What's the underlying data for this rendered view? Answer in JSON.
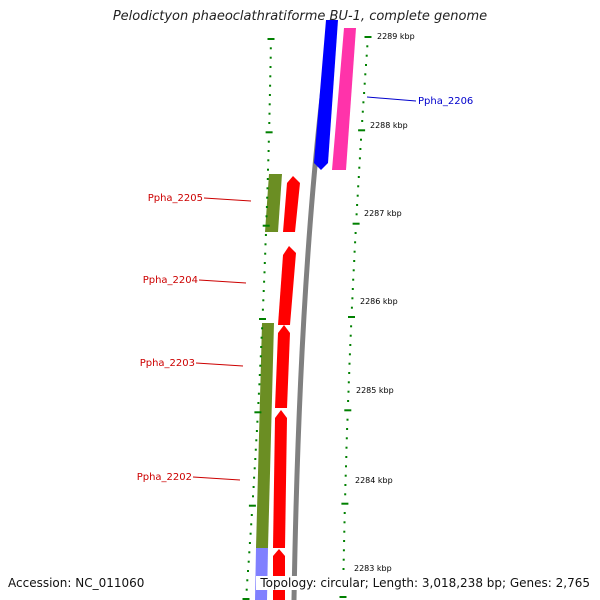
{
  "title": "Pelodictyon phaeoclathratiforme BU-1, complete genome",
  "accession": "Accession: NC_011060",
  "topology": "Topology: circular; Length: 3,018,238 bp; Genes: 2,765",
  "ticks": [
    "2289 kbp",
    "2288 kbp",
    "2287 kbp",
    "2286 kbp",
    "2285 kbp",
    "2284 kbp",
    "2283 kbp"
  ],
  "genes": [
    {
      "label": "Ppha_2206",
      "strand": "forward",
      "color": "#0000cc"
    },
    {
      "label": "Ppha_2205",
      "strand": "reverse",
      "color": "#cc0000"
    },
    {
      "label": "Ppha_2204",
      "strand": "reverse",
      "color": "#cc0000"
    },
    {
      "label": "Ppha_2203",
      "strand": "reverse",
      "color": "#cc0000"
    },
    {
      "label": "Ppha_2202",
      "strand": "reverse",
      "color": "#cc0000"
    }
  ],
  "colors": {
    "backbone": "#808080",
    "forward_cds": "#0000ff",
    "forward_feature": "#ff33aa",
    "reverse_cds": "#ff0000",
    "reverse_feature": "#6b8e23",
    "reverse_feature_end": "#8080ff",
    "tick": "#008000"
  }
}
